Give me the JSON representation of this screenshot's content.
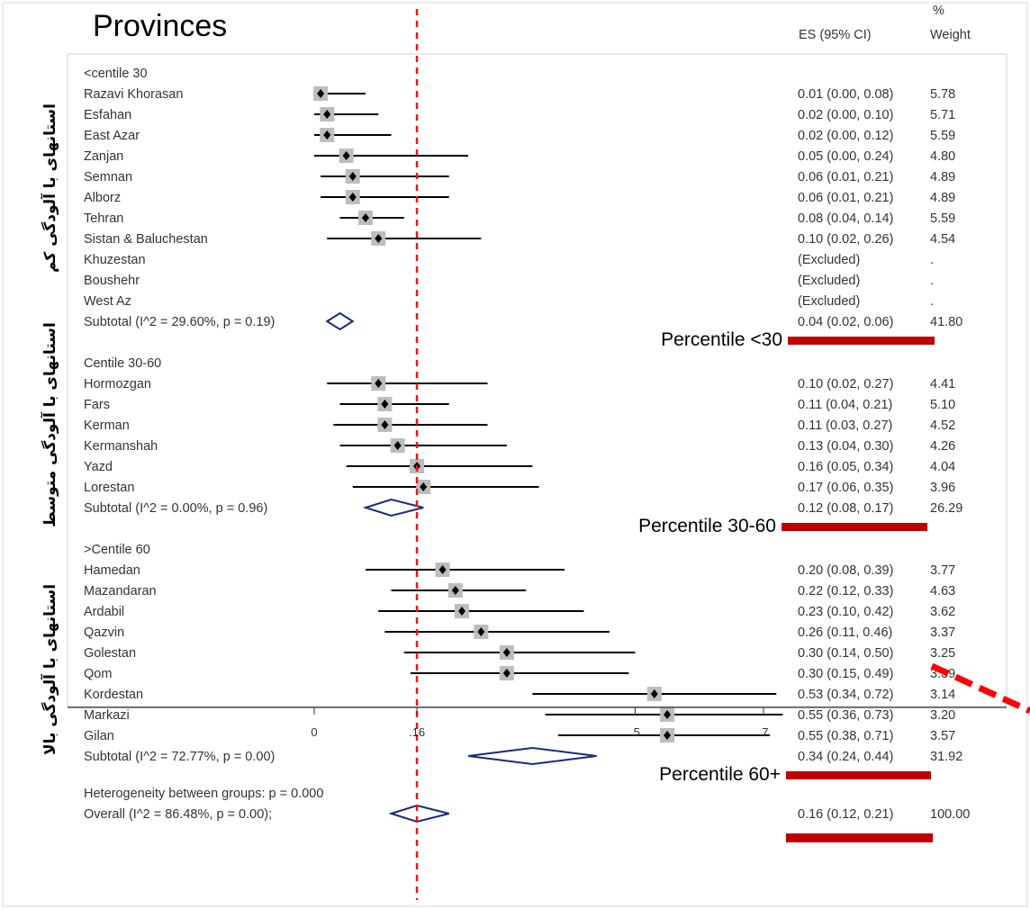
{
  "title": "Provinces",
  "columns": {
    "es": "ES (95% CI)",
    "weight_top": "%",
    "weight": "Weight"
  },
  "side_labels": [
    "استانهای با آلودگی کم",
    "استانهای با آلودگی متوسط",
    "استانهای با آلودگی بالا"
  ],
  "chart_data": {
    "type": "forest",
    "reference_line": 0.16,
    "xlim": [
      0,
      0.7
    ],
    "x_ticks": [
      {
        "value": 0,
        "label": "0"
      },
      {
        "value": 0.16,
        "label": ".16"
      },
      {
        "value": 0.5,
        "label": ".5"
      },
      {
        "value": 0.7,
        "label": ".7"
      }
    ],
    "groups": [
      {
        "header": "<centile 30",
        "badge": "Percentile <30",
        "rows": [
          {
            "label": "Razavi Khorasan",
            "es": 0.01,
            "lo": 0.0,
            "hi": 0.08,
            "text": "0.01 (0.00, 0.08)",
            "weight": "5.78"
          },
          {
            "label": "Esfahan",
            "es": 0.02,
            "lo": 0.0,
            "hi": 0.1,
            "text": "0.02 (0.00, 0.10)",
            "weight": "5.71"
          },
          {
            "label": "East Azar",
            "es": 0.02,
            "lo": 0.0,
            "hi": 0.12,
            "text": "0.02 (0.00, 0.12)",
            "weight": "5.59"
          },
          {
            "label": "Zanjan",
            "es": 0.05,
            "lo": 0.0,
            "hi": 0.24,
            "text": "0.05 (0.00, 0.24)",
            "weight": "4.80"
          },
          {
            "label": "Semnan",
            "es": 0.06,
            "lo": 0.01,
            "hi": 0.21,
            "text": "0.06 (0.01, 0.21)",
            "weight": "4.89"
          },
          {
            "label": "Alborz",
            "es": 0.06,
            "lo": 0.01,
            "hi": 0.21,
            "text": "0.06 (0.01, 0.21)",
            "weight": "4.89"
          },
          {
            "label": "Tehran",
            "es": 0.08,
            "lo": 0.04,
            "hi": 0.14,
            "text": "0.08 (0.04, 0.14)",
            "weight": "5.59"
          },
          {
            "label": "Sistan & Baluchestan",
            "es": 0.1,
            "lo": 0.02,
            "hi": 0.26,
            "text": "0.10 (0.02, 0.26)",
            "weight": "4.54"
          },
          {
            "label": "Khuzestan",
            "es": null,
            "text": "(Excluded)",
            "weight": "."
          },
          {
            "label": "Boushehr",
            "es": null,
            "text": "(Excluded)",
            "weight": "."
          },
          {
            "label": "West Az",
            "es": null,
            "text": "(Excluded)",
            "weight": "."
          }
        ],
        "subtotal": {
          "label": "Subtotal  (I^2 = 29.60%, p = 0.19)",
          "es": 0.04,
          "lo": 0.02,
          "hi": 0.06,
          "text": "0.04 (0.02, 0.06)",
          "weight": "41.80"
        }
      },
      {
        "header": "Centile 30-60",
        "badge": "Percentile 30-60",
        "rows": [
          {
            "label": "Hormozgan",
            "es": 0.1,
            "lo": 0.02,
            "hi": 0.27,
            "text": "0.10 (0.02, 0.27)",
            "weight": "4.41"
          },
          {
            "label": "Fars",
            "es": 0.11,
            "lo": 0.04,
            "hi": 0.21,
            "text": "0.11 (0.04, 0.21)",
            "weight": "5.10"
          },
          {
            "label": "Kerman",
            "es": 0.11,
            "lo": 0.03,
            "hi": 0.27,
            "text": "0.11 (0.03, 0.27)",
            "weight": "4.52"
          },
          {
            "label": "Kermanshah",
            "es": 0.13,
            "lo": 0.04,
            "hi": 0.3,
            "text": "0.13 (0.04, 0.30)",
            "weight": "4.26"
          },
          {
            "label": "Yazd",
            "es": 0.16,
            "lo": 0.05,
            "hi": 0.34,
            "text": "0.16 (0.05, 0.34)",
            "weight": "4.04"
          },
          {
            "label": "Lorestan",
            "es": 0.17,
            "lo": 0.06,
            "hi": 0.35,
            "text": "0.17 (0.06, 0.35)",
            "weight": "3.96"
          }
        ],
        "subtotal": {
          "label": "Subtotal  (I^2 = 0.00%, p = 0.96)",
          "es": 0.12,
          "lo": 0.08,
          "hi": 0.17,
          "text": "0.12 (0.08, 0.17)",
          "weight": "26.29"
        }
      },
      {
        "header": ">Centile 60",
        "badge": "Percentile 60+",
        "rows": [
          {
            "label": "Hamedan",
            "es": 0.2,
            "lo": 0.08,
            "hi": 0.39,
            "text": "0.20 (0.08, 0.39)",
            "weight": "3.77"
          },
          {
            "label": "Mazandaran",
            "es": 0.22,
            "lo": 0.12,
            "hi": 0.33,
            "text": "0.22 (0.12, 0.33)",
            "weight": "4.63"
          },
          {
            "label": "Ardabil",
            "es": 0.23,
            "lo": 0.1,
            "hi": 0.42,
            "text": "0.23 (0.10, 0.42)",
            "weight": "3.62"
          },
          {
            "label": "Qazvin",
            "es": 0.26,
            "lo": 0.11,
            "hi": 0.46,
            "text": "0.26 (0.11, 0.46)",
            "weight": "3.37"
          },
          {
            "label": "Golestan",
            "es": 0.3,
            "lo": 0.14,
            "hi": 0.5,
            "text": "0.30 (0.14, 0.50)",
            "weight": "3.25"
          },
          {
            "label": "Qom",
            "es": 0.3,
            "lo": 0.15,
            "hi": 0.49,
            "text": "0.30 (0.15, 0.49)",
            "weight": "3.39"
          },
          {
            "label": "Kordestan",
            "es": 0.53,
            "lo": 0.34,
            "hi": 0.72,
            "text": "0.53 (0.34, 0.72)",
            "weight": "3.14"
          },
          {
            "label": "Markazi",
            "es": 0.55,
            "lo": 0.36,
            "hi": 0.73,
            "text": "0.55 (0.36, 0.73)",
            "weight": "3.20"
          },
          {
            "label": "Gilan",
            "es": 0.55,
            "lo": 0.38,
            "hi": 0.71,
            "text": "0.55 (0.38, 0.71)",
            "weight": "3.57"
          }
        ],
        "subtotal": {
          "label": "Subtotal  (I^2 = 72.77%, p = 0.00)",
          "es": 0.34,
          "lo": 0.24,
          "hi": 0.44,
          "text": "0.34 (0.24, 0.44)",
          "weight": "31.92"
        }
      }
    ],
    "heterogeneity": "Heterogeneity between groups: p = 0.000",
    "overall": {
      "label": "Overall  (I^2 = 86.48%, p = 0.00);",
      "es": 0.16,
      "lo": 0.12,
      "hi": 0.21,
      "text": "0.16 (0.12, 0.21)",
      "weight": "100.00"
    }
  },
  "colors": {
    "reference_line": "#e31a1c",
    "diamond": "#1a2a80",
    "badge_bar": "#c00000",
    "box": "#bdbdbd"
  }
}
